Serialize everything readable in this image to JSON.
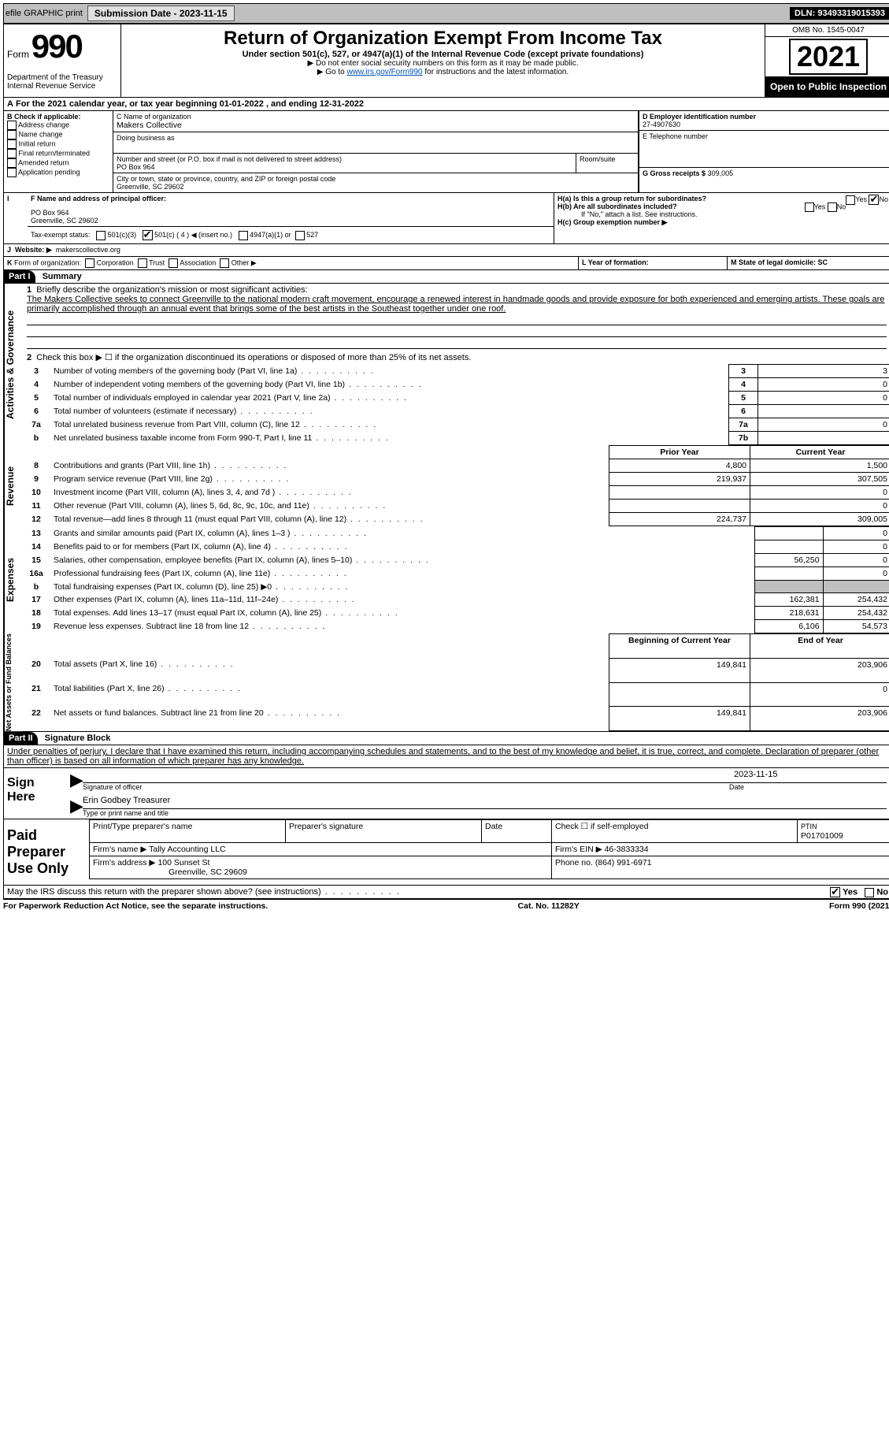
{
  "topbar": {
    "efile": "efile GRAPHIC print",
    "submit_label": "Submission Date - 2023-11-15",
    "dln": "DLN: 93493319015393"
  },
  "header": {
    "form_word": "Form",
    "form_num": "990",
    "dept": "Department of the Treasury",
    "irs": "Internal Revenue Service",
    "title": "Return of Organization Exempt From Income Tax",
    "sub": "Under section 501(c), 527, or 4947(a)(1) of the Internal Revenue Code (except private foundations)",
    "note1": "▶ Do not enter social security numbers on this form as it may be made public.",
    "note2_pre": "▶ Go to ",
    "note2_link": "www.irs.gov/Form990",
    "note2_post": " for instructions and the latest information.",
    "omb": "OMB No. 1545-0047",
    "year": "2021",
    "open": "Open to Public Inspection"
  },
  "periodA": {
    "text": "For the 2021 calendar year, or tax year beginning 01-01-2022    , and ending 12-31-2022"
  },
  "boxB": {
    "label": "B Check if applicable:",
    "items": [
      "Address change",
      "Name change",
      "Initial return",
      "Final return/terminated",
      "Amended return",
      "Application pending"
    ]
  },
  "boxC": {
    "label": "C Name of organization",
    "name": "Makers Collective",
    "dba_label": "Doing business as",
    "addr_label": "Number and street (or P.O. box if mail is not delivered to street address)",
    "room_label": "Room/suite",
    "addr": "PO Box 964",
    "city_label": "City or town, state or province, country, and ZIP or foreign postal code",
    "city": "Greenville, SC  29602"
  },
  "boxD": {
    "label": "D Employer identification number",
    "val": "27-4907630"
  },
  "boxE": {
    "label": "E Telephone number",
    "val": ""
  },
  "boxG": {
    "label": "G Gross receipts $",
    "val": "309,005"
  },
  "boxF": {
    "label": "F  Name and address of principal officer:",
    "l1": "PO Box 964",
    "l2": "Greenville, SC  29602"
  },
  "boxH": {
    "a": "H(a)  Is this a group return for subordinates?",
    "b": "H(b)  Are all subordinates included?",
    "b_note": "If \"No,\" attach a list. See instructions.",
    "c": "H(c)  Group exemption number ▶",
    "yes": "Yes",
    "no": "No"
  },
  "boxI": {
    "label": "Tax-exempt status:",
    "o1": "501(c)(3)",
    "o2": "501(c) ( 4 ) ◀ (insert no.)",
    "o3": "4947(a)(1) or",
    "o4": "527"
  },
  "boxJ": {
    "label": "Website: ▶",
    "val": "makerscollective.org"
  },
  "boxK": {
    "label": "Form of organization:",
    "o1": "Corporation",
    "o2": "Trust",
    "o3": "Association",
    "o4": "Other ▶"
  },
  "boxL": {
    "label": "L Year of formation:",
    "val": ""
  },
  "boxM": {
    "label": "M State of legal domicile: SC"
  },
  "part1": {
    "hdr": "Part I",
    "title": "Summary",
    "q1_label": "1",
    "q1": "Briefly describe the organization's mission or most significant activities:",
    "q1_text": "The Makers Collective seeks to connect Greenville to the national modern craft movement, encourage a renewed interest in handmade goods and provide exposure for both experienced and emerging artists. These goals are primarily accomplished through an annual event that brings some of the best artists in the Southeast together under one roof.",
    "q2": "Check this box ▶ ☐  if the organization discontinued its operations or disposed of more than 25% of its net assets.",
    "tab_gov": "Activities & Governance",
    "tab_rev": "Revenue",
    "tab_exp": "Expenses",
    "tab_net": "Net Assets or Fund Balances",
    "rows_gov": [
      {
        "n": "3",
        "t": "Number of voting members of the governing body (Part VI, line 1a)",
        "box": "3",
        "v": "3"
      },
      {
        "n": "4",
        "t": "Number of independent voting members of the governing body (Part VI, line 1b)",
        "box": "4",
        "v": "0"
      },
      {
        "n": "5",
        "t": "Total number of individuals employed in calendar year 2021 (Part V, line 2a)",
        "box": "5",
        "v": "0"
      },
      {
        "n": "6",
        "t": "Total number of volunteers (estimate if necessary)",
        "box": "6",
        "v": ""
      },
      {
        "n": "7a",
        "t": "Total unrelated business revenue from Part VIII, column (C), line 12",
        "box": "7a",
        "v": "0"
      },
      {
        "n": "b",
        "t": "Net unrelated business taxable income from Form 990-T, Part I, line 11",
        "box": "7b",
        "v": ""
      }
    ],
    "col_prior": "Prior Year",
    "col_curr": "Current Year",
    "rows_rev": [
      {
        "n": "8",
        "t": "Contributions and grants (Part VIII, line 1h)",
        "p": "4,800",
        "c": "1,500"
      },
      {
        "n": "9",
        "t": "Program service revenue (Part VIII, line 2g)",
        "p": "219,937",
        "c": "307,505"
      },
      {
        "n": "10",
        "t": "Investment income (Part VIII, column (A), lines 3, 4, and 7d )",
        "p": "",
        "c": "0"
      },
      {
        "n": "11",
        "t": "Other revenue (Part VIII, column (A), lines 5, 6d, 8c, 9c, 10c, and 11e)",
        "p": "",
        "c": "0"
      },
      {
        "n": "12",
        "t": "Total revenue—add lines 8 through 11 (must equal Part VIII, column (A), line 12)",
        "p": "224,737",
        "c": "309,005"
      }
    ],
    "rows_exp": [
      {
        "n": "13",
        "t": "Grants and similar amounts paid (Part IX, column (A), lines 1–3 )",
        "p": "",
        "c": "0"
      },
      {
        "n": "14",
        "t": "Benefits paid to or for members (Part IX, column (A), line 4)",
        "p": "",
        "c": "0"
      },
      {
        "n": "15",
        "t": "Salaries, other compensation, employee benefits (Part IX, column (A), lines 5–10)",
        "p": "56,250",
        "c": "0"
      },
      {
        "n": "16a",
        "t": "Professional fundraising fees (Part IX, column (A), line 11e)",
        "p": "",
        "c": "0"
      },
      {
        "n": "b",
        "t": "Total fundraising expenses (Part IX, column (D), line 25) ▶0",
        "p": "shade",
        "c": "shade"
      },
      {
        "n": "17",
        "t": "Other expenses (Part IX, column (A), lines 11a–11d, 11f–24e)",
        "p": "162,381",
        "c": "254,432"
      },
      {
        "n": "18",
        "t": "Total expenses. Add lines 13–17 (must equal Part IX, column (A), line 25)",
        "p": "218,631",
        "c": "254,432"
      },
      {
        "n": "19",
        "t": "Revenue less expenses. Subtract line 18 from line 12",
        "p": "6,106",
        "c": "54,573"
      }
    ],
    "col_begin": "Beginning of Current Year",
    "col_end": "End of Year",
    "rows_net": [
      {
        "n": "20",
        "t": "Total assets (Part X, line 16)",
        "p": "149,841",
        "c": "203,906"
      },
      {
        "n": "21",
        "t": "Total liabilities (Part X, line 26)",
        "p": "",
        "c": "0"
      },
      {
        "n": "22",
        "t": "Net assets or fund balances. Subtract line 21 from line 20",
        "p": "149,841",
        "c": "203,906"
      }
    ]
  },
  "part2": {
    "hdr": "Part II",
    "title": "Signature Block",
    "decl": "Under penalties of perjury, I declare that I have examined this return, including accompanying schedules and statements, and to the best of my knowledge and belief, it is true, correct, and complete. Declaration of preparer (other than officer) is based on all information of which preparer has any knowledge.",
    "sign": "Sign Here",
    "sig_officer": "Signature of officer",
    "date": "Date",
    "sig_date": "2023-11-15",
    "name_line": "Erin Godbey  Treasurer",
    "name_label": "Type or print name and title",
    "paid": "Paid Preparer Use Only",
    "pp_name": "Print/Type preparer's name",
    "pp_sig": "Preparer's signature",
    "pp_date": "Date",
    "pp_check": "Check ☐ if self-employed",
    "ptin_label": "PTIN",
    "ptin": "P01701009",
    "firm_name_l": "Firm's name    ▶",
    "firm_name": "Tally Accounting LLC",
    "firm_ein_l": "Firm's EIN ▶",
    "firm_ein": "46-3833334",
    "firm_addr_l": "Firm's address ▶",
    "firm_addr1": "100 Sunset St",
    "firm_addr2": "Greenville, SC  29609",
    "phone_l": "Phone no.",
    "phone": "(864) 991-6971",
    "may": "May the IRS discuss this return with the preparer shown above? (see instructions)",
    "yes": "Yes",
    "no": "No"
  },
  "footer": {
    "left": "For Paperwork Reduction Act Notice, see the separate instructions.",
    "mid": "Cat. No. 11282Y",
    "right": "Form 990 (2021)"
  }
}
